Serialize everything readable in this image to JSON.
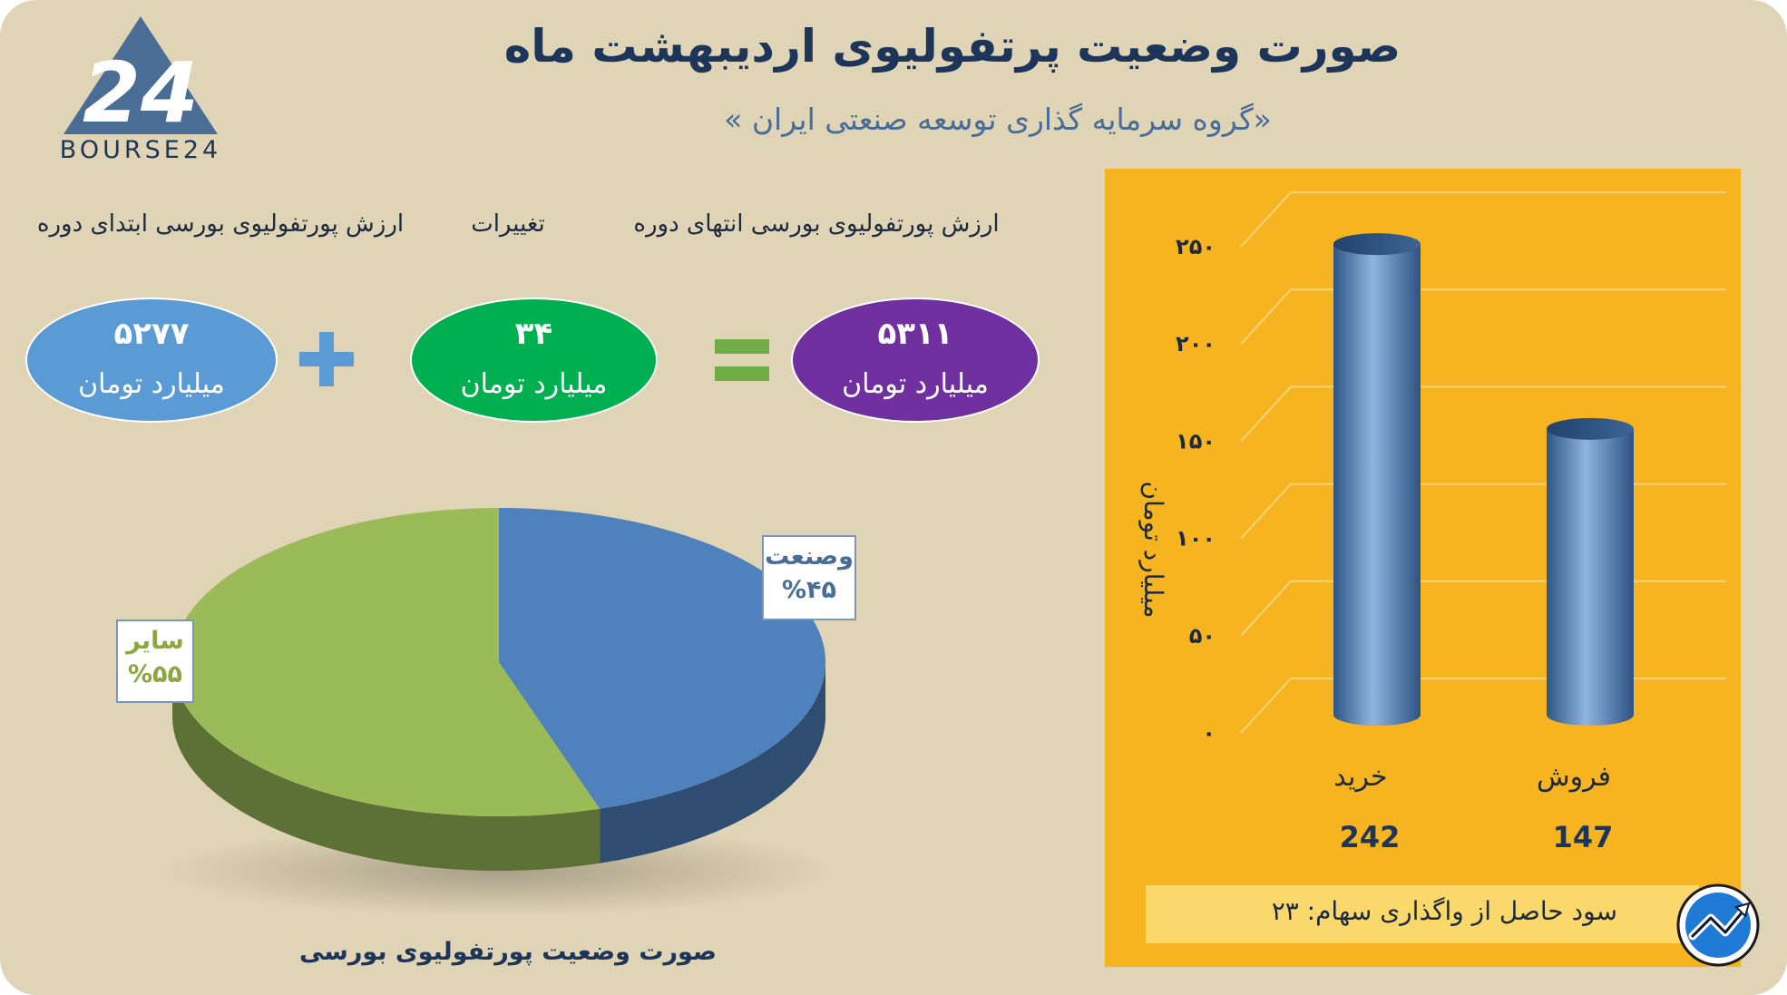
{
  "header": {
    "title": "صورت وضعیت پرتفولیوی اردیبهشت ماه",
    "subtitle": "«گروه سرمایه گذاری توسعه صنعتی ایران »"
  },
  "logo": {
    "text": "BOURSE24",
    "mark": "24"
  },
  "equation": {
    "labels": {
      "start": "ارزش پورتفولیوی بورسی ابتدای دوره",
      "change": "تغییرات",
      "end": "ارزش پورتفولیوی بورسی انتهای دوره"
    },
    "start": {
      "value": "۵۲۷۷",
      "unit": "میلیارد تومان",
      "color": "#5b9bd5"
    },
    "change": {
      "value": "۳۴",
      "unit": "میلیارد تومان",
      "color": "#00b050"
    },
    "end": {
      "value": "۵۳۱۱",
      "unit": "میلیارد تومان",
      "color": "#7030a0"
    },
    "plus_sign": "+",
    "equals_sign": "=",
    "plus_color": "#5b9bd5",
    "equals_color": "#70ad47"
  },
  "chart_data": [
    {
      "type": "pie",
      "title": "",
      "caption": "صورت وضعیت پورتفولیوی بورسی",
      "slices": [
        {
          "label": "وصنعت",
          "percent_label": "%۴۵",
          "value": 45,
          "color": "#4f81bd"
        },
        {
          "label": "سایر",
          "percent_label": "%۵۵",
          "value": 55,
          "color": "#9bbb59"
        }
      ]
    },
    {
      "type": "bar",
      "categories": [
        "خرید",
        "فروش"
      ],
      "values": [
        242,
        147
      ],
      "value_labels": [
        "242",
        "147"
      ],
      "ylabel": "میلیارد تومان",
      "ylim": [
        0,
        250
      ],
      "yticks": [
        "۰",
        "۵۰",
        "۱۰۰",
        "۱۵۰",
        "۲۰۰",
        "۲۵۰"
      ],
      "grid": true,
      "bar_color": "#4f81bd",
      "background": "#f7b421"
    }
  ],
  "footer": {
    "profit_text": "سود حاصل از واگذاری سهام: ۲۳"
  },
  "badge": {
    "icon": "trend-up-icon",
    "color": "#1f7ad6"
  }
}
